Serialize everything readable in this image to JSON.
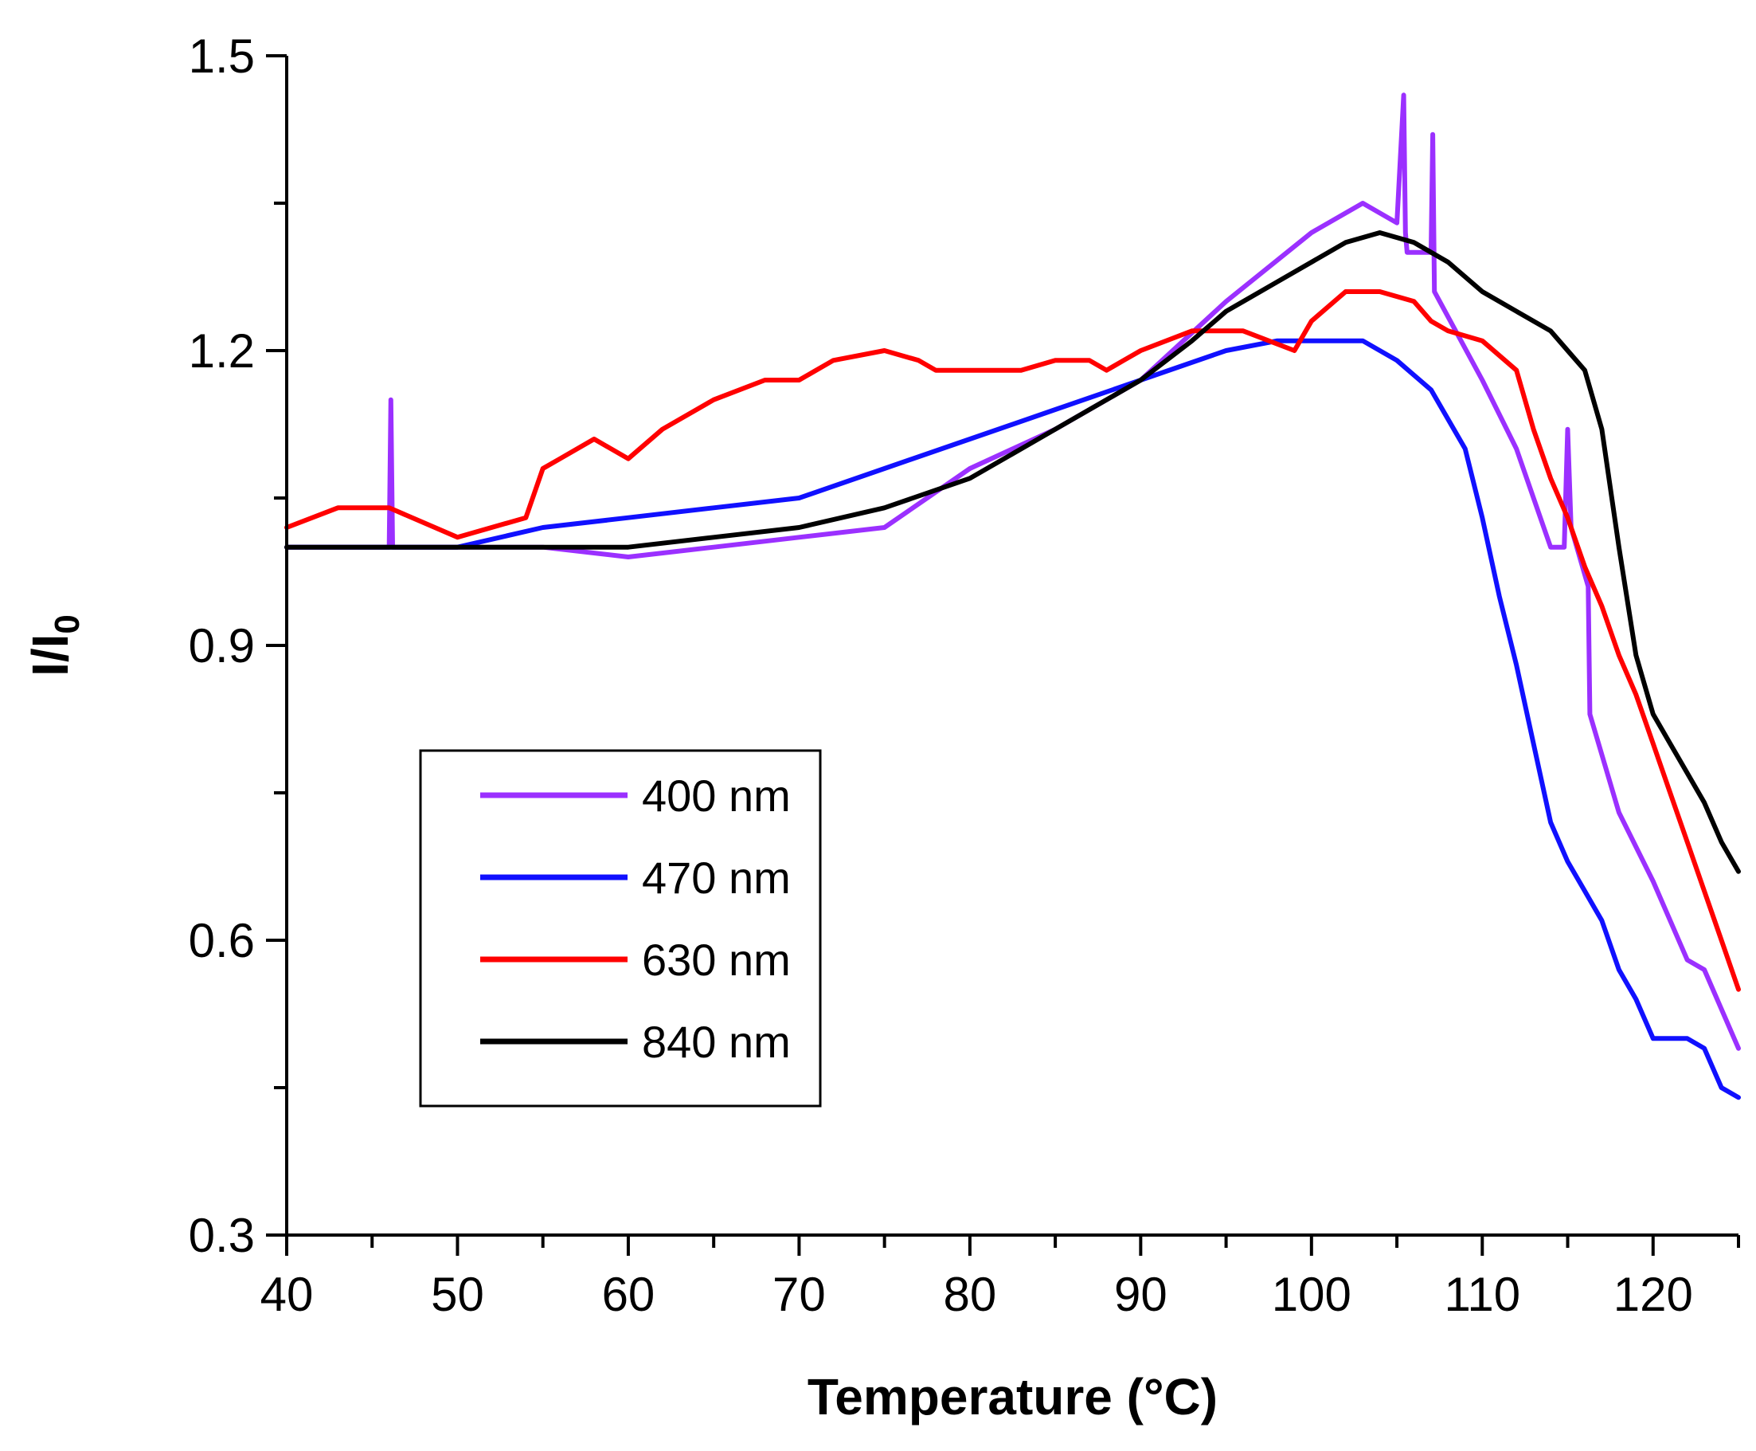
{
  "chart_data": {
    "type": "line",
    "title": "",
    "xlabel": "Temperature (°C)",
    "ylabel_main": "I/I",
    "ylabel_sub": "0",
    "xlim": [
      40,
      125
    ],
    "ylim": [
      0.3,
      1.5
    ],
    "xticks": [
      40,
      50,
      60,
      70,
      80,
      90,
      100,
      110,
      120
    ],
    "xtick_labels": [
      "40",
      "50",
      "60",
      "70",
      "80",
      "90",
      "100",
      "110",
      "120"
    ],
    "yticks": [
      0.3,
      0.6,
      0.9,
      1.2,
      1.5
    ],
    "ytick_labels": [
      "0.3",
      "0.6",
      "0.9",
      "1.2",
      "1.5"
    ],
    "grid": false,
    "legend_position": "lower-left",
    "series": [
      {
        "name": "400 nm",
        "color": "#9b30ff",
        "x": [
          40,
          45,
          46,
          46.1,
          46.2,
          50,
          55,
          60,
          65,
          70,
          75,
          80,
          85,
          90,
          95,
          100,
          103,
          105,
          105.4,
          105.5,
          105.6,
          107,
          107.1,
          107.2,
          110,
          112,
          114,
          114.8,
          115,
          115.2,
          116.2,
          116.3,
          118,
          120,
          122,
          123,
          125
        ],
        "y": [
          1.0,
          1.0,
          1.0,
          1.15,
          1.0,
          1.0,
          1.0,
          0.99,
          1.0,
          1.01,
          1.02,
          1.08,
          1.12,
          1.17,
          1.25,
          1.32,
          1.35,
          1.33,
          1.46,
          1.32,
          1.3,
          1.3,
          1.42,
          1.26,
          1.17,
          1.1,
          1.0,
          1.0,
          1.12,
          1.02,
          0.96,
          0.83,
          0.73,
          0.66,
          0.58,
          0.57,
          0.49
        ]
      },
      {
        "name": "470 nm",
        "color": "#1010ff",
        "x": [
          40,
          45,
          50,
          55,
          60,
          65,
          70,
          75,
          80,
          85,
          90,
          95,
          98,
          100,
          103,
          105,
          107,
          109,
          110,
          111,
          112,
          113,
          114,
          115,
          116,
          117,
          118,
          119,
          120,
          121,
          122,
          123,
          124,
          125
        ],
        "y": [
          1.0,
          1.0,
          1.0,
          1.02,
          1.03,
          1.04,
          1.05,
          1.08,
          1.11,
          1.14,
          1.17,
          1.2,
          1.21,
          1.21,
          1.21,
          1.19,
          1.16,
          1.1,
          1.03,
          0.95,
          0.88,
          0.8,
          0.72,
          0.68,
          0.65,
          0.62,
          0.57,
          0.54,
          0.5,
          0.5,
          0.5,
          0.49,
          0.45,
          0.44
        ]
      },
      {
        "name": "630 nm",
        "color": "#ff0000",
        "x": [
          40,
          43,
          46,
          50,
          54,
          55,
          56,
          58,
          60,
          62,
          65,
          68,
          70,
          72,
          75,
          77,
          78,
          80,
          83,
          85,
          87,
          88,
          89,
          90,
          93,
          96,
          99,
          100,
          102,
          104,
          106,
          107,
          108,
          110,
          112,
          113,
          114,
          115,
          116,
          117,
          118,
          119,
          120,
          121,
          122,
          123,
          124,
          125
        ],
        "y": [
          1.02,
          1.04,
          1.04,
          1.01,
          1.03,
          1.08,
          1.09,
          1.11,
          1.09,
          1.12,
          1.15,
          1.17,
          1.17,
          1.19,
          1.2,
          1.19,
          1.18,
          1.18,
          1.18,
          1.19,
          1.19,
          1.18,
          1.19,
          1.2,
          1.22,
          1.22,
          1.2,
          1.23,
          1.26,
          1.26,
          1.25,
          1.23,
          1.22,
          1.21,
          1.18,
          1.12,
          1.07,
          1.03,
          0.98,
          0.94,
          0.89,
          0.85,
          0.8,
          0.75,
          0.7,
          0.65,
          0.6,
          0.55
        ]
      },
      {
        "name": "840 nm",
        "color": "#000000",
        "x": [
          40,
          45,
          50,
          55,
          60,
          65,
          70,
          75,
          80,
          85,
          90,
          93,
          95,
          98,
          100,
          102,
          104,
          106,
          108,
          110,
          112,
          114,
          115,
          116,
          117,
          118,
          119,
          120,
          121,
          122,
          123,
          124,
          125
        ],
        "y": [
          1.0,
          1.0,
          1.0,
          1.0,
          1.0,
          1.01,
          1.02,
          1.04,
          1.07,
          1.12,
          1.17,
          1.21,
          1.24,
          1.27,
          1.29,
          1.31,
          1.32,
          1.31,
          1.29,
          1.26,
          1.24,
          1.22,
          1.2,
          1.18,
          1.12,
          1.0,
          0.89,
          0.83,
          0.8,
          0.77,
          0.74,
          0.7,
          0.67
        ]
      }
    ]
  }
}
